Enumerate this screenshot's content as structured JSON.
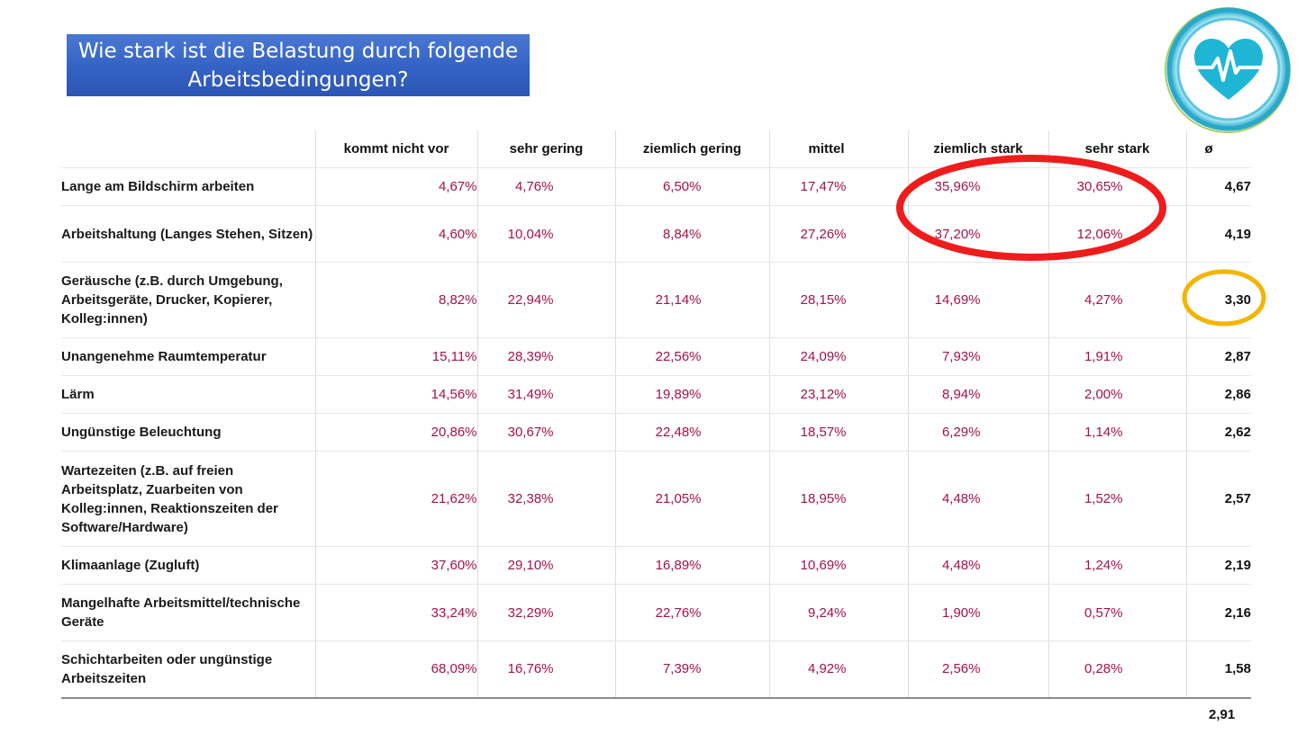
{
  "title": "Wie stark ist die Belastung durch folgende Arbeitsbedingungen?",
  "logo": {
    "icon": "heart-pulse-icon",
    "colors": {
      "ring": "#2aa7c9",
      "heart": "#1fb6d6",
      "accent": "#8cc63f"
    }
  },
  "table": {
    "headers": [
      "",
      "kommt nicht vor",
      "sehr gering",
      "ziemlich gering",
      "mittel",
      "ziemlich stark",
      "sehr stark",
      "ø"
    ],
    "rows": [
      {
        "label": "Lange am Bildschirm arbeiten",
        "values": [
          "4,67%",
          "4,76%",
          "6,50%",
          "17,47%",
          "35,96%",
          "30,65%"
        ],
        "avg": "4,67"
      },
      {
        "label": "Arbeitshaltung (Langes Stehen, Sitzen)",
        "values": [
          "4,60%",
          "10,04%",
          "8,84%",
          "27,26%",
          "37,20%",
          "12,06%"
        ],
        "avg": "4,19"
      },
      {
        "label": "Geräusche (z.B. durch Umgebung, Arbeitsgeräte, Drucker, Kopierer, Kolleg:innen)",
        "values": [
          "8,82%",
          "22,94%",
          "21,14%",
          "28,15%",
          "14,69%",
          "4,27%"
        ],
        "avg": "3,30"
      },
      {
        "label": "Unangenehme Raumtemperatur",
        "values": [
          "15,11%",
          "28,39%",
          "22,56%",
          "24,09%",
          "7,93%",
          "1,91%"
        ],
        "avg": "2,87"
      },
      {
        "label": "Lärm",
        "values": [
          "14,56%",
          "31,49%",
          "19,89%",
          "23,12%",
          "8,94%",
          "2,00%"
        ],
        "avg": "2,86"
      },
      {
        "label": "Ungünstige Beleuchtung",
        "values": [
          "20,86%",
          "30,67%",
          "22,48%",
          "18,57%",
          "6,29%",
          "1,14%"
        ],
        "avg": "2,62"
      },
      {
        "label": "Wartezeiten (z.B. auf freien Arbeitsplatz, Zuarbeiten von Kolleg:innen, Reaktionszeiten der Software/Hardware)",
        "values": [
          "21,62%",
          "32,38%",
          "21,05%",
          "18,95%",
          "4,48%",
          "1,52%"
        ],
        "avg": "2,57"
      },
      {
        "label": "Klimaanlage (Zugluft)",
        "values": [
          "37,60%",
          "29,10%",
          "16,89%",
          "10,69%",
          "4,48%",
          "1,24%"
        ],
        "avg": "2,19"
      },
      {
        "label": "Mangelhafte Arbeitsmittel/technische Geräte",
        "values": [
          "33,24%",
          "32,29%",
          "22,76%",
          "9,24%",
          "1,90%",
          "0,57%"
        ],
        "avg": "2,16"
      },
      {
        "label": "Schichtarbeiten oder ungünstige Arbeitszeiten",
        "values": [
          "68,09%",
          "16,76%",
          "7,39%",
          "4,92%",
          "2,56%",
          "0,28%"
        ],
        "avg": "1,58"
      }
    ],
    "overall_avg": "2,91"
  },
  "highlights": {
    "red_ellipse": {
      "color": "#ef1c1c",
      "marks": "ziemlich stark / sehr stark – first two rows"
    },
    "orange_circle": {
      "color": "#f5b400",
      "marks": "ø of Geräusche row"
    }
  }
}
